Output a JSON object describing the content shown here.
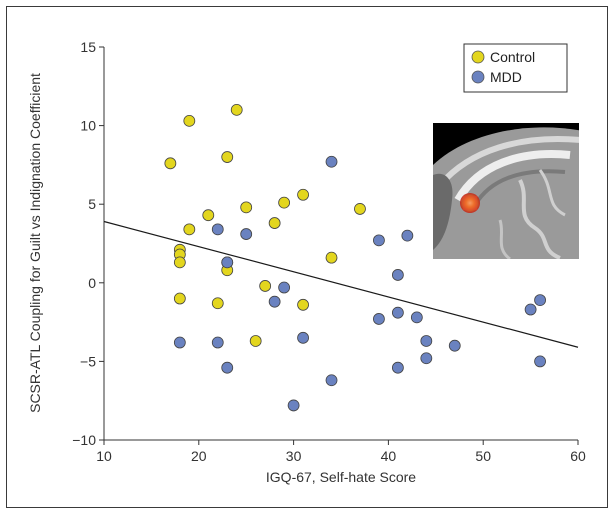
{
  "chart_data": {
    "type": "scatter",
    "xlabel": "IGQ-67, Self-hate Score",
    "ylabel": "SCSR-ATL Coupling for Guilt vs Indignation Coefficient",
    "xlim": [
      10,
      60
    ],
    "ylim": [
      -10,
      15
    ],
    "xticks": [
      10,
      20,
      30,
      40,
      50,
      60
    ],
    "yticks": [
      -10,
      -5,
      0,
      5,
      10,
      15
    ],
    "xtick_labels": [
      "10",
      "20",
      "30",
      "40",
      "50",
      "60"
    ],
    "ytick_labels": [
      "−10",
      "−5",
      "0",
      "5",
      "10",
      "15"
    ],
    "grid": false,
    "legend_position": "top-right",
    "series": [
      {
        "name": "Control",
        "color": "#e3d61e",
        "points": [
          [
            17,
            7.6
          ],
          [
            19,
            10.3
          ],
          [
            24,
            11.0
          ],
          [
            23,
            8.0
          ],
          [
            19,
            3.4
          ],
          [
            21,
            4.3
          ],
          [
            18,
            2.1
          ],
          [
            18,
            1.8
          ],
          [
            18,
            1.3
          ],
          [
            18,
            -1.0
          ],
          [
            22,
            -1.3
          ],
          [
            23,
            1.3
          ],
          [
            23,
            0.8
          ],
          [
            25,
            4.8
          ],
          [
            28,
            3.8
          ],
          [
            29,
            5.1
          ],
          [
            31,
            5.6
          ],
          [
            27,
            -0.2
          ],
          [
            26,
            -3.7
          ],
          [
            31,
            -1.4
          ],
          [
            34,
            1.6
          ],
          [
            37,
            4.7
          ]
        ]
      },
      {
        "name": "MDD",
        "color": "#6a82c0",
        "points": [
          [
            18,
            -3.8
          ],
          [
            22,
            -3.8
          ],
          [
            23,
            -5.4
          ],
          [
            22,
            3.4
          ],
          [
            25,
            3.1
          ],
          [
            23,
            1.3
          ],
          [
            28,
            -1.2
          ],
          [
            29,
            -0.3
          ],
          [
            31,
            -3.5
          ],
          [
            30,
            -7.8
          ],
          [
            34,
            7.7
          ],
          [
            34,
            -6.2
          ],
          [
            39,
            2.7
          ],
          [
            39,
            -2.3
          ],
          [
            41,
            0.5
          ],
          [
            41,
            -1.9
          ],
          [
            41,
            -5.4
          ],
          [
            42,
            3.0
          ],
          [
            43,
            -2.2
          ],
          [
            44,
            -3.7
          ],
          [
            44,
            -4.8
          ],
          [
            47,
            -4.0
          ],
          [
            55,
            -1.7
          ],
          [
            56,
            -1.1
          ],
          [
            56,
            -5.0
          ]
        ]
      }
    ],
    "regression_line": {
      "x": [
        10,
        60
      ],
      "y": [
        3.9,
        -4.1
      ]
    }
  },
  "inset": {
    "description_icon": "brain-mri-sagittal-icon",
    "background_color": "#000000",
    "highlight_color": "#f0832a"
  }
}
